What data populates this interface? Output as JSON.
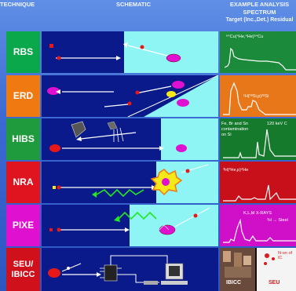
{
  "header": {
    "technique": "TECHNIQUE",
    "schematic": "SCHEMATIC",
    "spectrum_line1": "EXAMPLE ANALYSIS",
    "spectrum_line2": "SPECTRUM",
    "spectrum_line3": "Target (Inc.,Det.) Residual"
  },
  "rows": [
    {
      "label": "RBS",
      "color": "#0aa84a",
      "spectrum_text": "⁶⁴Cu(⁴He,⁴He)⁶⁴Cu",
      "spectrum_color": "#1b8a3a"
    },
    {
      "label": "ERD",
      "color": "#f07a12",
      "spectrum_text": "¹H(²⁸Si,p)²⁸Si",
      "spectrum_color": "#e8771a"
    },
    {
      "label": "HIBS",
      "color": "#1f9a3c",
      "spectrum_text_lines": [
        "Fe, Br and Sn",
        "contamination",
        "on Si"
      ],
      "spectrum_text_right": "120 keV C",
      "spectrum_color": "#157a2c"
    },
    {
      "label": "NRA",
      "color": "#e0141e",
      "spectrum_text": "³H(³He,p)⁴He",
      "spectrum_color": "#c8101a"
    },
    {
      "label": "PIXE",
      "color": "#e010d0",
      "spectrum_text": "K,L,M X-RAYS",
      "spectrum_text_small": "¹H → Steel",
      "spectrum_color": "#d010c8"
    },
    {
      "label_lines": [
        "SEU/",
        "IBICC"
      ],
      "color": "#d0101a",
      "spectrum_labels": [
        "IBICC",
        "SEU"
      ],
      "spectrum_corner": "N-on of IC"
    }
  ],
  "colors": {
    "dark_blue": "#0a1a8a",
    "cyan": "#8ef4f4",
    "background": "#3c6ad2"
  }
}
